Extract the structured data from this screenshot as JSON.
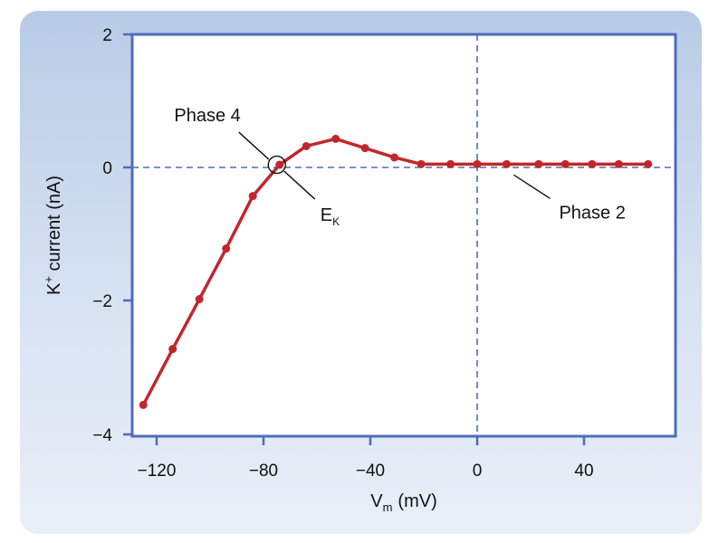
{
  "chart_data": {
    "type": "line",
    "title": "",
    "xlabel": "V",
    "xlabel_sub": "m",
    "xlabel_unit": "(mV)",
    "ylabel": "K",
    "ylabel_sup": "+",
    "ylabel_rest": " current (nA)",
    "xlim": [
      -130,
      80
    ],
    "ylim": [
      -4,
      2
    ],
    "xticks": [
      -120,
      -80,
      -40,
      0,
      40
    ],
    "xtick_labels": [
      "−120",
      "−80",
      "−40",
      "0",
      "40"
    ],
    "yticks": [
      2,
      0,
      -2,
      -4
    ],
    "ytick_labels": [
      "2",
      "0",
      "−2",
      "−4"
    ],
    "grid": false,
    "reference_lines": {
      "x": 0,
      "y": 0
    },
    "series": [
      {
        "name": "K+ current",
        "color": "#c0272d",
        "x": [
          -125,
          -114,
          -104,
          -94,
          -84,
          -74,
          -64,
          -53,
          -42,
          -31,
          -21,
          -10,
          0,
          11,
          23,
          33,
          43,
          53,
          64
        ],
        "y": [
          -3.57,
          -2.73,
          -1.98,
          -1.22,
          -0.43,
          0.04,
          0.32,
          0.43,
          0.29,
          0.15,
          0.05,
          0.05,
          0.05,
          0.05,
          0.05,
          0.05,
          0.05,
          0.05,
          0.05
        ]
      }
    ],
    "annotations": [
      {
        "text": "Phase 4",
        "x": -74,
        "y": 0.04
      },
      {
        "text": "E",
        "sub": "K",
        "x": -74,
        "y": 0.04
      },
      {
        "text": "Phase 2",
        "x": 11,
        "y": 0.05
      }
    ],
    "marker_circle": {
      "x": -75,
      "y": 0.04
    }
  },
  "colors": {
    "axis": "#4f6cb9",
    "dashed": "#4f6cb9",
    "series": "#c0272d",
    "plot_bg": "#ffffff"
  }
}
